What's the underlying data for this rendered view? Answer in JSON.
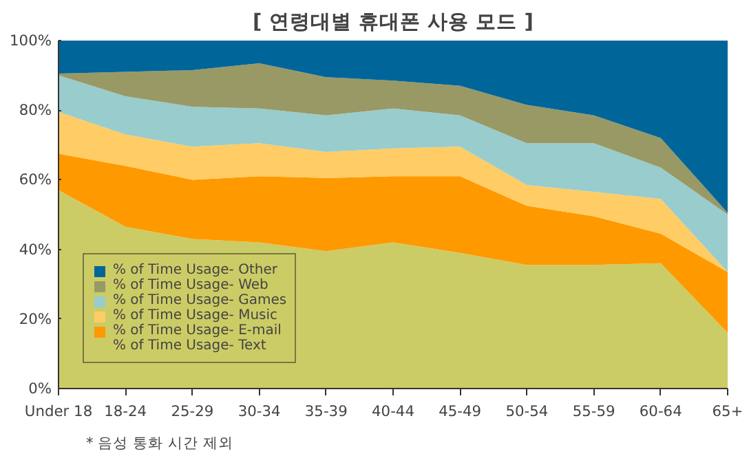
{
  "chart_data": {
    "type": "area",
    "stacked": true,
    "title": "[ 연령대별 휴대폰 사용 모드 ]",
    "categories": [
      "Under 18",
      "18-24",
      "25-29",
      "30-34",
      "35-39",
      "40-44",
      "45-49",
      "50-54",
      "55-59",
      "60-64",
      "65+"
    ],
    "series": [
      {
        "name": "% of Time Usage- Text",
        "color": "#cccc66",
        "values": [
          57,
          46.5,
          43,
          42,
          39.5,
          42,
          39,
          35.5,
          35.5,
          36,
          16
        ]
      },
      {
        "name": "% of Time Usage- E-mail",
        "color": "#ff9900",
        "values": [
          10.5,
          17.5,
          17,
          19,
          21,
          19,
          22,
          17,
          14,
          8.5,
          17.5
        ]
      },
      {
        "name": "% of Time Usage- Music",
        "color": "#ffcc66",
        "values": [
          12,
          9,
          9.5,
          9.5,
          7.5,
          8,
          8.5,
          6,
          7,
          10,
          0
        ]
      },
      {
        "name": "% of Time Usage- Games",
        "color": "#99cccc",
        "values": [
          10.5,
          11,
          11.5,
          10,
          10.5,
          11.5,
          9,
          12,
          14,
          9,
          16.5
        ]
      },
      {
        "name": "% of Time Usage- Web",
        "color": "#999966",
        "values": [
          0.5,
          7,
          10.5,
          13,
          11,
          8,
          8.5,
          11,
          8,
          8.5,
          0.5
        ]
      },
      {
        "name": "% of Time Usage- Other",
        "color": "#006699",
        "values": [
          9.5,
          9,
          8.5,
          6.5,
          10.5,
          11.5,
          13,
          18.5,
          21.5,
          28,
          49.5
        ]
      }
    ],
    "ylim": [
      0,
      100
    ],
    "yticks": [
      {
        "value": 0,
        "label": "0%"
      },
      {
        "value": 20,
        "label": "20%"
      },
      {
        "value": 40,
        "label": "40%"
      },
      {
        "value": 60,
        "label": "60%"
      },
      {
        "value": 80,
        "label": "80%"
      },
      {
        "value": 100,
        "label": "100%"
      }
    ],
    "legend": "bottom left",
    "grid": false,
    "annotations": [
      "* 음성 통화 시간 제외"
    ]
  }
}
